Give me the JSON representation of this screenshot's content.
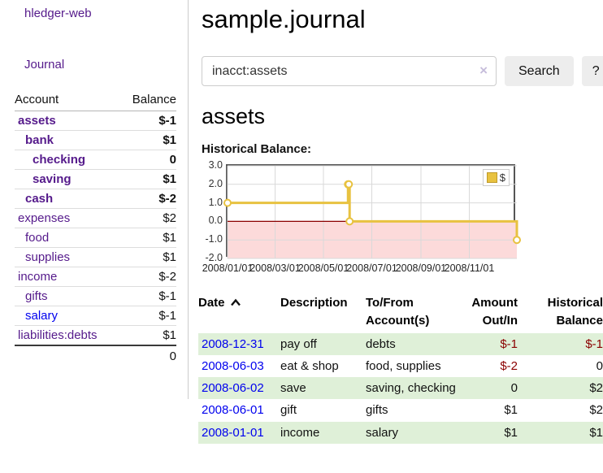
{
  "app_title": "hledger-web",
  "sidebar": {
    "journal_link": "Journal",
    "accounts": {
      "header_account": "Account",
      "header_balance": "Balance",
      "rows": [
        {
          "name": "assets",
          "balance": "$-1",
          "indent": 1,
          "bold": true,
          "value_style": "neg-strong",
          "link_style": "visited"
        },
        {
          "name": "bank",
          "balance": "$1",
          "indent": 2,
          "bold": true,
          "value_style": "pos",
          "link_style": "visited"
        },
        {
          "name": "checking",
          "balance": "0",
          "indent": 3,
          "bold": true,
          "value_style": "pos",
          "link_style": "visited"
        },
        {
          "name": "saving",
          "balance": "$1",
          "indent": 3,
          "bold": true,
          "value_style": "pos",
          "link_style": "visited"
        },
        {
          "name": "cash",
          "balance": "$-2",
          "indent": 2,
          "bold": true,
          "value_style": "neg-strong",
          "link_style": "visited"
        },
        {
          "name": "expenses",
          "balance": "$2",
          "indent": 1,
          "bold": false,
          "value_style": "pos",
          "link_style": "visited"
        },
        {
          "name": "food",
          "balance": "$1",
          "indent": 2,
          "bold": false,
          "value_style": "pos",
          "link_style": "visited"
        },
        {
          "name": "supplies",
          "balance": "$1",
          "indent": 2,
          "bold": false,
          "value_style": "pos",
          "link_style": "visited"
        },
        {
          "name": "income",
          "balance": "$-2",
          "indent": 1,
          "bold": false,
          "value_style": "neg-faint",
          "link_style": "visited"
        },
        {
          "name": "gifts",
          "balance": "$-1",
          "indent": 2,
          "bold": false,
          "value_style": "neg-faint",
          "link_style": "visited"
        },
        {
          "name": "salary",
          "balance": "$-1",
          "indent": 2,
          "bold": false,
          "value_style": "neg-faint",
          "link_style": "unvisited"
        },
        {
          "name": "liabilities:debts",
          "balance": "$1",
          "indent": 1,
          "bold": false,
          "value_style": "pos",
          "link_style": "visited"
        }
      ],
      "total": "0"
    }
  },
  "main": {
    "title": "sample.journal",
    "search": {
      "value": "inacct:assets",
      "clear_icon": "×",
      "search_button": "Search",
      "help_button": "?"
    },
    "account_heading": "assets"
  },
  "register": {
    "columns": [
      {
        "label": "Date",
        "align": "left",
        "sorted": "ascending"
      },
      {
        "label": "Description",
        "align": "left"
      },
      {
        "label": "To/From Account(s)",
        "align": "left"
      },
      {
        "label": "Amount Out/In",
        "align": "right"
      },
      {
        "label": "Historical Balance",
        "align": "right"
      }
    ],
    "rows": [
      {
        "date": "2008-12-31",
        "description": "pay off",
        "accounts": "debts",
        "amount": "$-1",
        "amount_negative": true,
        "balance": "$-1",
        "balance_negative": true
      },
      {
        "date": "2008-06-03",
        "description": "eat & shop",
        "accounts": "food, supplies",
        "amount": "$-2",
        "amount_negative": true,
        "balance": "0",
        "balance_negative": false
      },
      {
        "date": "2008-06-02",
        "description": "save",
        "accounts": "saving, checking",
        "amount": "0",
        "amount_negative": false,
        "balance": "$2",
        "balance_negative": false
      },
      {
        "date": "2008-06-01",
        "description": "gift",
        "accounts": "gifts",
        "amount": "$1",
        "amount_negative": false,
        "balance": "$2",
        "balance_negative": false
      },
      {
        "date": "2008-01-01",
        "description": "income",
        "accounts": "salary",
        "amount": "$1",
        "amount_negative": false,
        "balance": "$1",
        "balance_negative": false
      }
    ]
  },
  "chart_data": {
    "type": "line",
    "title": "Historical Balance:",
    "step": true,
    "legend": "$",
    "legend_position": "top-right",
    "series": [
      {
        "name": "$",
        "points": [
          {
            "date": "2008-01-01",
            "value": 1
          },
          {
            "date": "2008-06-01",
            "value": 2
          },
          {
            "date": "2008-06-02",
            "value": 2
          },
          {
            "date": "2008-06-03",
            "value": 0
          },
          {
            "date": "2008-12-31",
            "value": -1
          }
        ]
      }
    ],
    "ylim": [
      -2.0,
      3.0
    ],
    "yticks": [
      "3.0",
      "2.0",
      "1.0",
      "0.0",
      "-1.0",
      "-2.0"
    ],
    "xticks": [
      {
        "label": "2008/01/01",
        "date": "2008-01-01"
      },
      {
        "label": "2008/03/01",
        "date": "2008-03-01"
      },
      {
        "label": "2008/05/01",
        "date": "2008-05-01"
      },
      {
        "label": "2008/07/01",
        "date": "2008-07-01"
      },
      {
        "label": "2008/09/01",
        "date": "2008-09-01"
      },
      {
        "label": "2008/11/01",
        "date": "2008-11-01"
      }
    ],
    "grid": true
  },
  "colors": {
    "link_visited_purple": "#551a8b",
    "link_blue": "#0000ee",
    "negative_strong": "#8b0000",
    "negative_faint": "#bc8181",
    "row_highlight_green": "#dff0d8",
    "chart_line_gold": "#e8c240",
    "chart_negative_region_pink": "#fcdada",
    "chart_zero_line_red": "#8b0000",
    "chart_border_gray": "#555555",
    "gridline_gray": "#d9d9d9"
  }
}
